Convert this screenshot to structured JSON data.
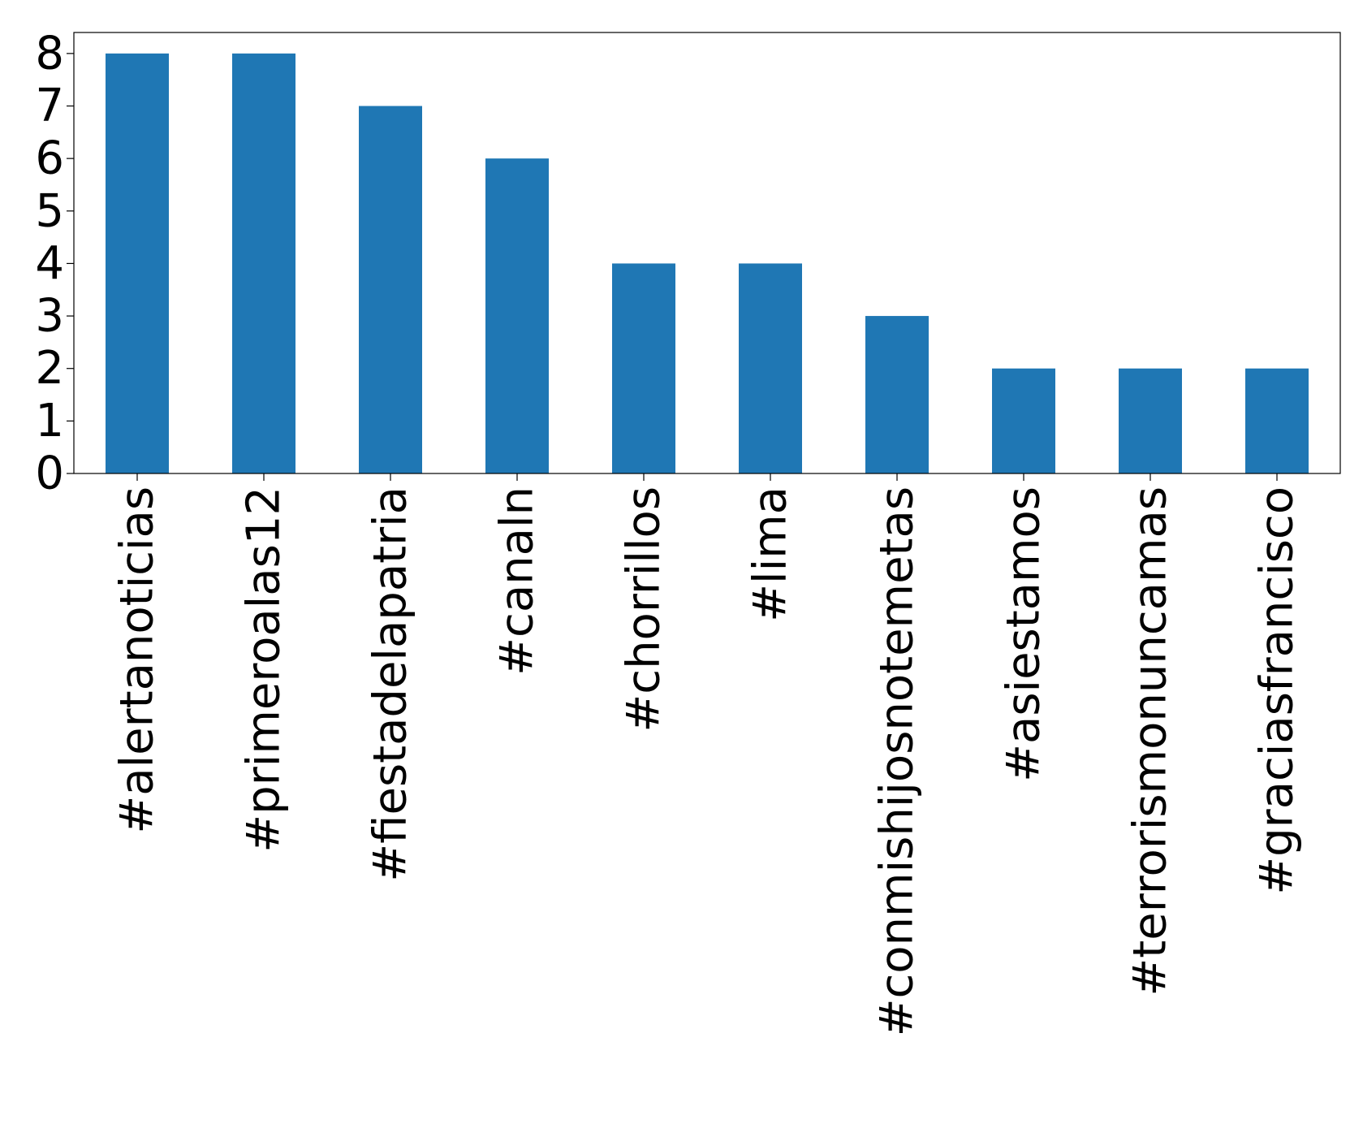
{
  "chart_data": {
    "type": "bar",
    "title": "",
    "xlabel": "",
    "ylabel": "",
    "categories": [
      "#alertanoticias",
      "#primeroalas12",
      "#fiestadelapatria",
      "#canaln",
      "#chorrillos",
      "#lima",
      "#conmishijosnotemetas",
      "#asiestamos",
      "#terrorismonuncamas",
      "#graciasfrancisco"
    ],
    "values": [
      8,
      8,
      7,
      6,
      4,
      4,
      3,
      2,
      2,
      2
    ],
    "ylim": [
      0,
      8.4
    ],
    "yticks": [
      0,
      1,
      2,
      3,
      4,
      5,
      6,
      7,
      8
    ],
    "bar_color": "#1f77b4",
    "grid": false,
    "legend": "none"
  }
}
